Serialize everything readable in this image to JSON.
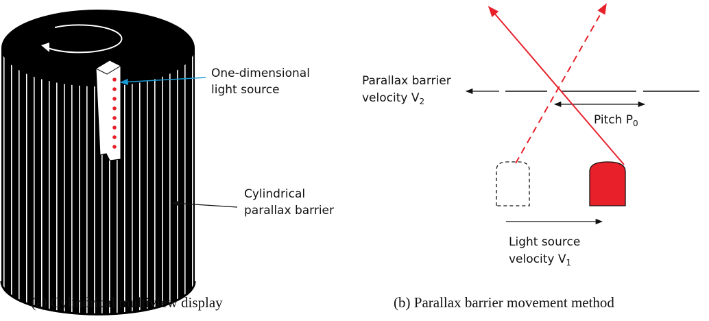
{
  "panel_a": {
    "source_label": [
      "One-dimensional",
      "light source"
    ],
    "barrier_label": [
      "Cylindrical",
      "parallax barrier"
    ],
    "caption": "(a) Cylindrical multiview display"
  },
  "panel_b": {
    "barrier_velocity": {
      "line1": "Parallax barrier",
      "line2": "velocity V",
      "sub": "2"
    },
    "pitch": {
      "text": "Pitch P",
      "sub": "0"
    },
    "source_velocity": {
      "line1": "Light source",
      "line2": "velocity V",
      "sub": "1"
    },
    "caption": "(b) Parallax barrier movement method"
  }
}
